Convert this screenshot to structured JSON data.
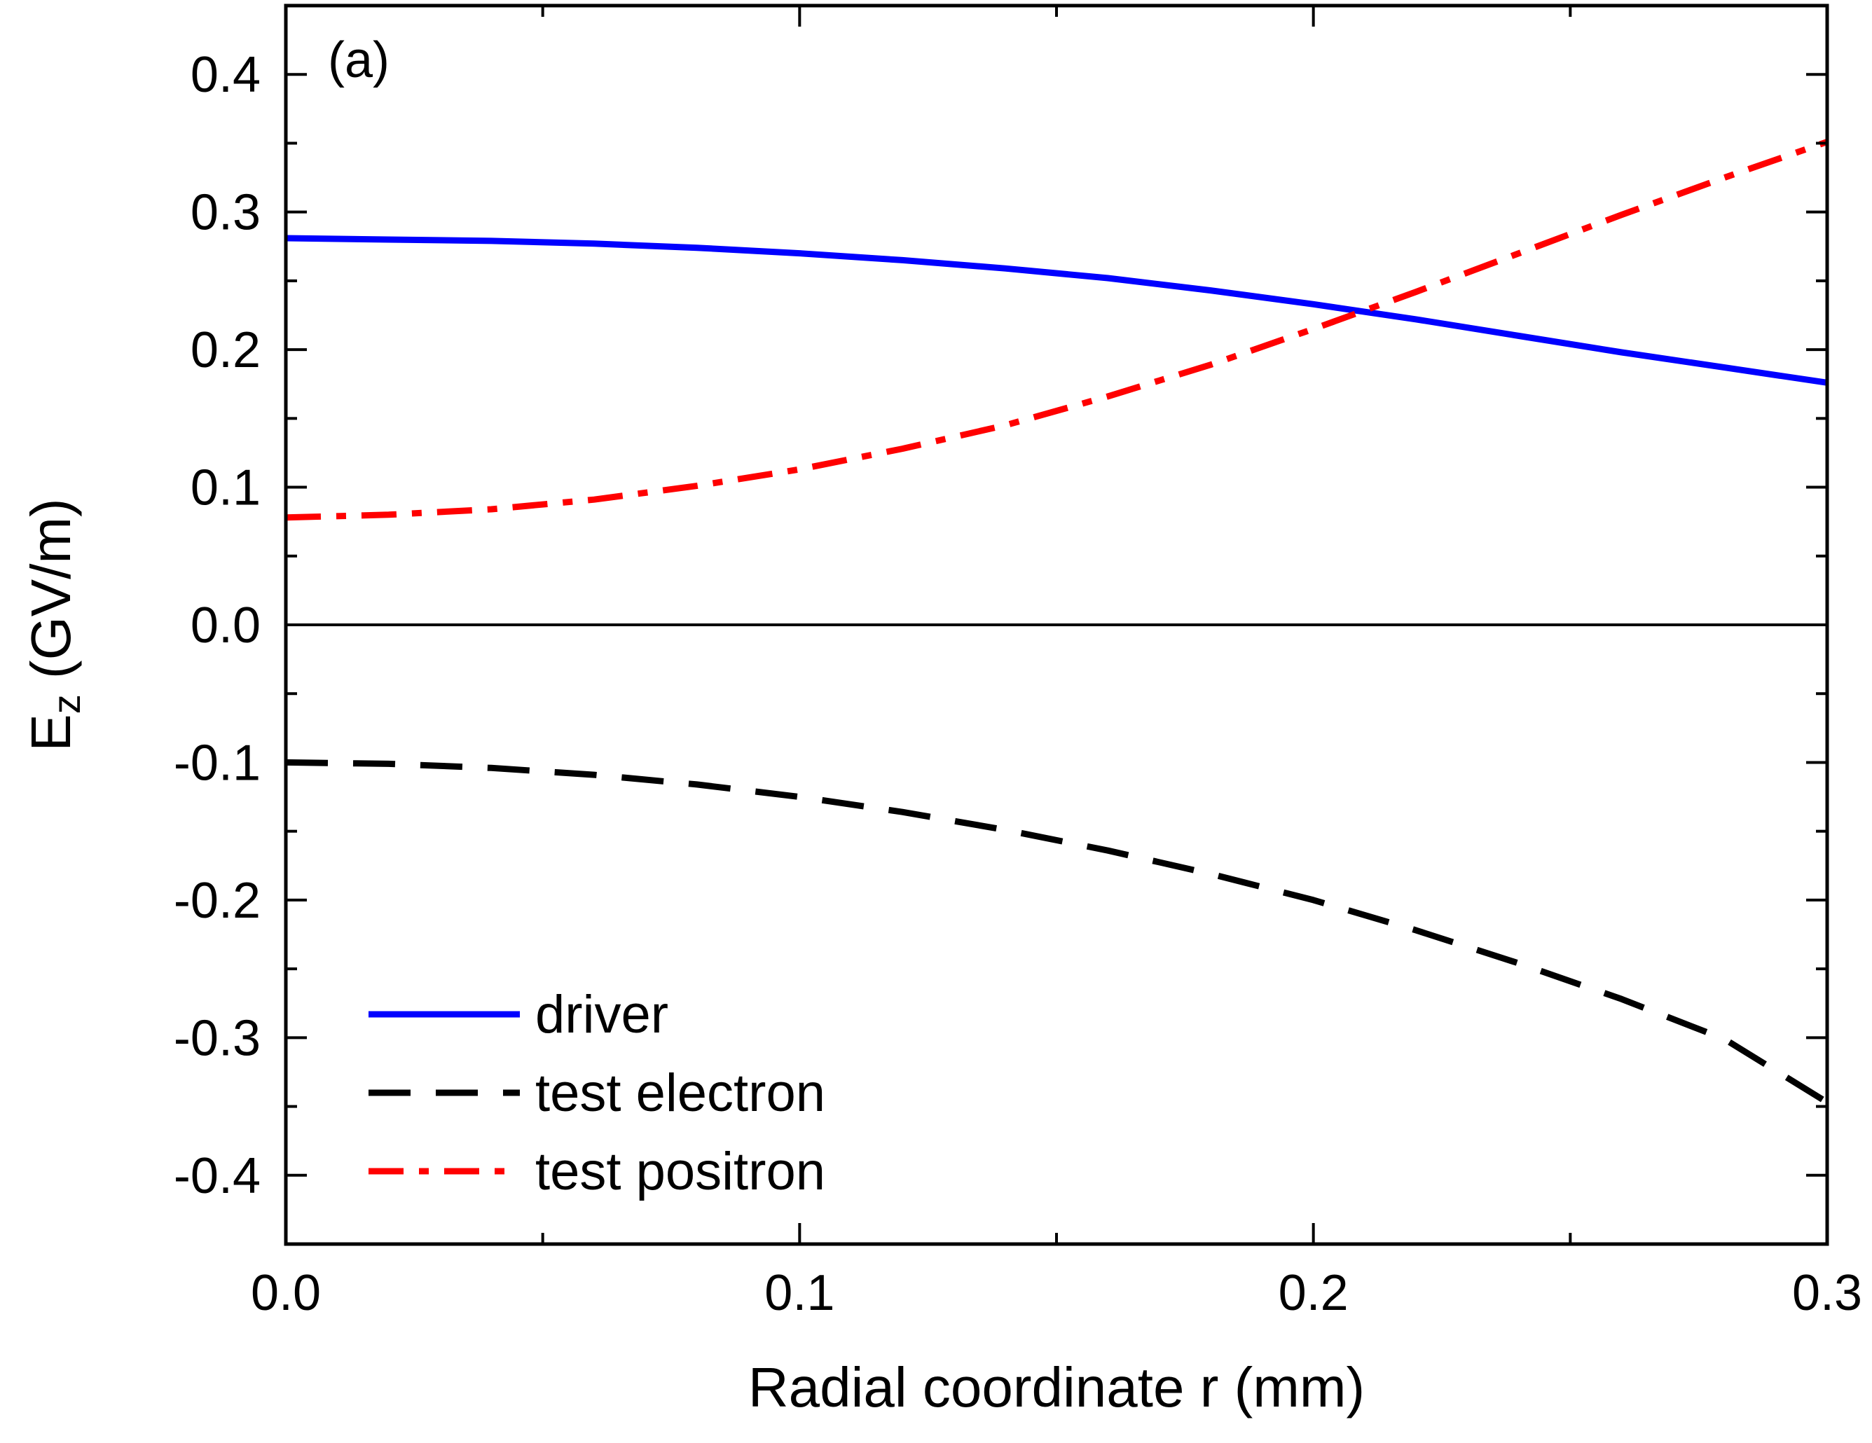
{
  "chart_data": {
    "type": "line",
    "panel_label": "(a)",
    "xlabel": "Radial coordinate r (mm)",
    "ylabel": {
      "main": "E",
      "sub": "z",
      "unit": " (GV/m)"
    },
    "xlim": [
      0.0,
      0.3
    ],
    "ylim": [
      -0.45,
      0.45
    ],
    "xticks": [
      0.0,
      0.1,
      0.2,
      0.3
    ],
    "xtick_labels": [
      "0.0",
      "0.1",
      "0.2",
      "0.3"
    ],
    "yticks": [
      -0.4,
      -0.3,
      -0.2,
      -0.1,
      0.0,
      0.1,
      0.2,
      0.3,
      0.4
    ],
    "ytick_labels": [
      "-0.4",
      "-0.3",
      "-0.2",
      "-0.1",
      "0.0",
      "0.1",
      "0.2",
      "0.3",
      "0.4"
    ],
    "zero_line": true,
    "legend_position": "bottom-left",
    "series": [
      {
        "name": "driver",
        "color": "#0000ff",
        "style": "solid",
        "x": [
          0.0,
          0.02,
          0.04,
          0.06,
          0.08,
          0.1,
          0.12,
          0.14,
          0.16,
          0.18,
          0.2,
          0.22,
          0.24,
          0.26,
          0.28,
          0.3
        ],
        "values": [
          0.281,
          0.28,
          0.279,
          0.277,
          0.274,
          0.27,
          0.265,
          0.259,
          0.252,
          0.243,
          0.233,
          0.222,
          0.21,
          0.198,
          0.187,
          0.176
        ]
      },
      {
        "name": "test electron",
        "color": "#000000",
        "style": "dashed",
        "x": [
          0.0,
          0.02,
          0.04,
          0.06,
          0.08,
          0.1,
          0.12,
          0.14,
          0.16,
          0.18,
          0.2,
          0.22,
          0.24,
          0.26,
          0.28,
          0.3
        ],
        "values": [
          -0.1,
          -0.101,
          -0.104,
          -0.109,
          -0.116,
          -0.125,
          -0.136,
          -0.149,
          -0.164,
          -0.181,
          -0.2,
          -0.222,
          -0.246,
          -0.272,
          -0.301,
          -0.347
        ]
      },
      {
        "name": "test positron",
        "color": "#ff0000",
        "style": "dashdot",
        "x": [
          0.0,
          0.02,
          0.04,
          0.06,
          0.08,
          0.1,
          0.12,
          0.14,
          0.16,
          0.18,
          0.2,
          0.22,
          0.24,
          0.26,
          0.28,
          0.3
        ],
        "values": [
          0.078,
          0.08,
          0.084,
          0.091,
          0.101,
          0.113,
          0.128,
          0.145,
          0.166,
          0.189,
          0.215,
          0.242,
          0.27,
          0.298,
          0.325,
          0.351
        ]
      }
    ]
  }
}
